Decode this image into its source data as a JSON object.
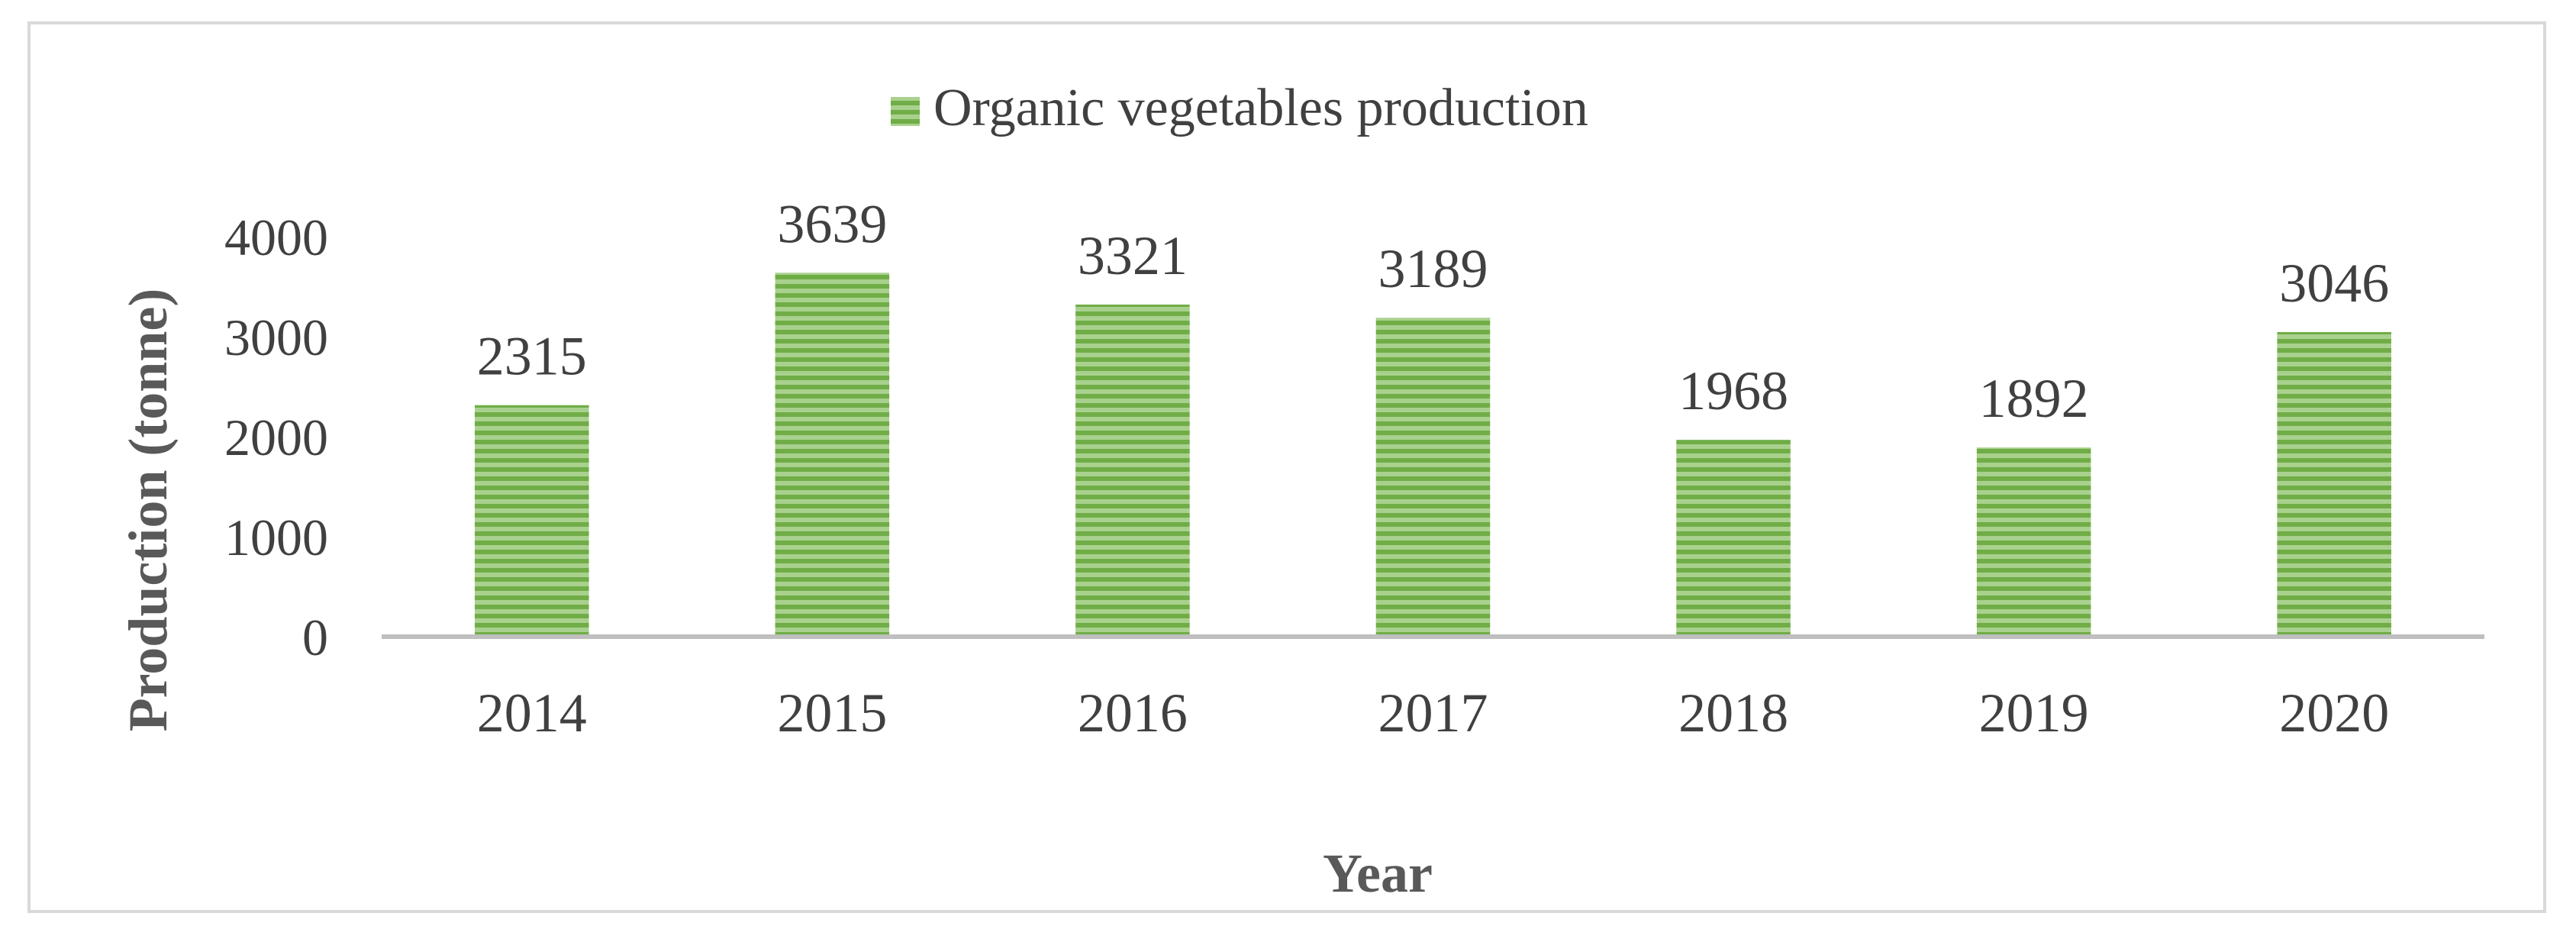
{
  "chart_data": {
    "type": "bar",
    "title": "",
    "xlabel": "Year",
    "ylabel": "Production (tonne)",
    "categories": [
      "2014",
      "2015",
      "2016",
      "2017",
      "2018",
      "2019",
      "2020"
    ],
    "series": [
      {
        "name": "Organic vegetables production",
        "values": [
          2315,
          3639,
          3321,
          3189,
          1968,
          1892,
          3046
        ]
      }
    ],
    "ylim": [
      0,
      4000
    ],
    "yticks": [
      0,
      1000,
      2000,
      3000,
      4000
    ],
    "legend_position": "top-center",
    "grid": false,
    "colors": {
      "bar_light": "#a9d18e",
      "bar_dark": "#70ad47",
      "axis_line": "#bfbfbf",
      "frame": "#d9d9d9"
    }
  }
}
